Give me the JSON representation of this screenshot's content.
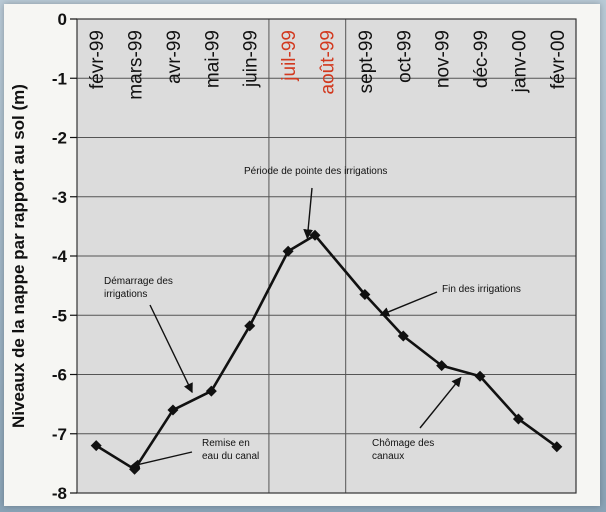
{
  "chart_data": {
    "type": "line",
    "ylabel": "Niveaux de la nappe par rapport au sol (m)",
    "xlabel": "",
    "title": "",
    "ylim": [
      -8,
      0
    ],
    "yticks": [
      0,
      -1,
      -2,
      -3,
      -4,
      -5,
      -6,
      -7,
      -8
    ],
    "grid": true,
    "categories": [
      "févr-99",
      "mars-99",
      "avr-99",
      "mai-99",
      "juin-99",
      "juil-99",
      "août-99",
      "sept-99",
      "oct-99",
      "nov-99",
      "déc-99",
      "janv-00",
      "févr-00"
    ],
    "highlight_categories": [
      "juil-99",
      "août-99"
    ],
    "highlight_color": "#d2381e",
    "series": [
      {
        "name": "",
        "x": [
          0.5,
          1.5,
          2.5,
          3.5,
          4.5,
          5.5,
          6.2,
          7.5,
          8.5,
          9.5,
          10.5,
          11.5,
          12.5
        ],
        "y": [
          -7.2,
          -7.6,
          -6.6,
          -6.28,
          -5.18,
          -3.92,
          -3.65,
          -4.65,
          -5.35,
          -5.85,
          -6.03,
          -6.75,
          -7.22
        ]
      }
    ],
    "annotations": [
      {
        "text": [
          "Période de pointe des irrigations"
        ],
        "target": [
          6.0,
          -3.7
        ]
      },
      {
        "text": [
          "Démarrage des",
          "irrigations"
        ],
        "target": [
          3.0,
          -6.3
        ]
      },
      {
        "text": [
          "Fin des irrigations"
        ],
        "target": [
          7.9,
          -5.0
        ]
      },
      {
        "text": [
          "Remise en",
          "eau du canal"
        ],
        "target": [
          1.4,
          -7.55
        ]
      },
      {
        "text": [
          "Chômage des",
          "canaux"
        ],
        "target": [
          10.0,
          -6.05
        ]
      }
    ]
  }
}
